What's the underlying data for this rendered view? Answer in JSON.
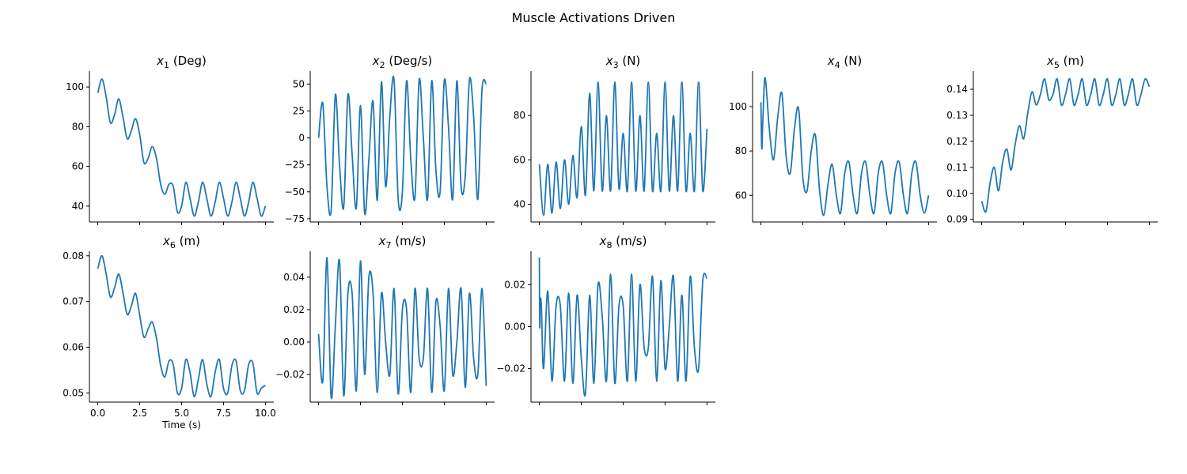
{
  "figure": {
    "title": "Muscle Activations Driven",
    "line_color": "#1f77b4",
    "background": "#ffffff"
  },
  "chart_data": [
    {
      "type": "line",
      "title_var": "x",
      "title_sub": "1",
      "title_unit": " (Deg)",
      "xlim": [
        -0.5,
        10.5
      ],
      "ylim": [
        32,
        108
      ],
      "xticks": [
        0,
        2.5,
        5,
        7.5,
        10
      ],
      "xtick_labels": [],
      "yticks": [
        40,
        60,
        80,
        100
      ],
      "ytick_labels": [
        "40",
        "60",
        "80",
        "100"
      ],
      "xlabel": "",
      "x": [
        0,
        0.25,
        0.5,
        0.75,
        1,
        1.25,
        1.5,
        1.75,
        2,
        2.25,
        2.5,
        2.75,
        3,
        3.25,
        3.5,
        3.75,
        4,
        4.25,
        4.5,
        4.75,
        5,
        5.25,
        5.5,
        5.75,
        6,
        6.25,
        6.5,
        6.75,
        7,
        7.25,
        7.5,
        7.75,
        8,
        8.25,
        8.5,
        8.75,
        9,
        9.25,
        9.5,
        9.75,
        10
      ],
      "y": [
        97,
        104,
        95,
        82,
        86,
        94,
        85,
        74,
        78,
        84,
        76,
        62,
        64,
        70,
        64,
        51,
        46,
        51,
        50,
        37,
        40,
        52,
        44,
        35,
        42,
        52,
        44,
        35,
        42,
        52,
        44,
        35,
        42,
        52,
        44,
        35,
        42,
        52,
        44,
        35,
        40
      ]
    },
    {
      "type": "line",
      "title_var": "x",
      "title_sub": "2",
      "title_unit": " (Deg/s)",
      "xlim": [
        -0.5,
        10.5
      ],
      "ylim": [
        -78,
        62
      ],
      "xticks": [
        0,
        2.5,
        5,
        7.5,
        10
      ],
      "xtick_labels": [],
      "yticks": [
        -75,
        -50,
        -25,
        0,
        25,
        50
      ],
      "ytick_labels": [
        "−75",
        "−50",
        "−25",
        "0",
        "25",
        "50"
      ],
      "xlabel": "",
      "x": [
        0,
        0.25,
        0.5,
        0.75,
        1,
        1.25,
        1.5,
        1.75,
        2,
        2.25,
        2.5,
        2.75,
        3,
        3.25,
        3.5,
        3.75,
        4,
        4.25,
        4.5,
        4.75,
        5,
        5.25,
        5.5,
        5.75,
        6,
        6.25,
        6.5,
        6.75,
        7,
        7.25,
        7.5,
        7.75,
        8,
        8.25,
        8.5,
        8.75,
        9,
        9.25,
        9.5,
        9.75,
        10
      ],
      "y": [
        0,
        32,
        -45,
        -67,
        40,
        -25,
        -64,
        40,
        -15,
        -65,
        30,
        -70,
        -20,
        34,
        -58,
        52,
        -45,
        20,
        54,
        -57,
        -50,
        53,
        -20,
        -55,
        54,
        0,
        -57,
        53,
        -30,
        -50,
        53,
        10,
        -57,
        53,
        -45,
        -35,
        54,
        20,
        -57,
        45,
        50
      ]
    },
    {
      "type": "line",
      "title_var": "x",
      "title_sub": "3",
      "title_unit": " (N)",
      "xlim": [
        -0.5,
        10.5
      ],
      "ylim": [
        32,
        100
      ],
      "xticks": [
        0,
        2.5,
        5,
        7.5,
        10
      ],
      "xtick_labels": [],
      "yticks": [
        40,
        60,
        80
      ],
      "ytick_labels": [
        "40",
        "60",
        "80"
      ],
      "xlabel": "",
      "x": [
        0,
        0.25,
        0.5,
        0.75,
        1,
        1.25,
        1.5,
        1.75,
        2,
        2.25,
        2.5,
        2.75,
        3,
        3.25,
        3.5,
        3.75,
        4,
        4.25,
        4.5,
        4.75,
        5,
        5.25,
        5.5,
        5.75,
        6,
        6.25,
        6.5,
        6.75,
        7,
        7.25,
        7.5,
        7.75,
        8,
        8.25,
        8.5,
        8.75,
        9,
        9.25,
        9.5,
        9.75,
        10
      ],
      "y": [
        58,
        35,
        58,
        36,
        59,
        38,
        60,
        40,
        62,
        43,
        75,
        44,
        90,
        46,
        95,
        46,
        80,
        46,
        95,
        47,
        72,
        46,
        95,
        46,
        80,
        46,
        95,
        46,
        72,
        46,
        95,
        46,
        80,
        46,
        95,
        46,
        72,
        46,
        95,
        46,
        74
      ]
    },
    {
      "type": "line",
      "title_var": "x",
      "title_sub": "4",
      "title_unit": " (N)",
      "xlim": [
        -0.5,
        10.5
      ],
      "ylim": [
        48,
        116
      ],
      "xticks": [
        0,
        2.5,
        5,
        7.5,
        10
      ],
      "xtick_labels": [],
      "yticks": [
        60,
        80,
        100
      ],
      "ytick_labels": [
        "60",
        "80",
        "100"
      ],
      "xlabel": "",
      "x": [
        0,
        0.05,
        0.12,
        0.25,
        0.5,
        0.75,
        1,
        1.25,
        1.5,
        1.75,
        2,
        2.25,
        2.5,
        2.75,
        3,
        3.25,
        3.5,
        3.75,
        4,
        4.25,
        4.5,
        4.75,
        5,
        5.25,
        5.5,
        5.75,
        6,
        6.25,
        6.5,
        6.75,
        7,
        7.25,
        7.5,
        7.75,
        8,
        8.25,
        8.5,
        8.75,
        9,
        9.25,
        9.5,
        9.75,
        10
      ],
      "y": [
        102,
        81,
        95,
        113,
        90,
        76,
        95,
        106,
        78,
        70,
        90,
        99,
        68,
        62,
        80,
        87,
        62,
        51,
        65,
        74,
        60,
        52,
        70,
        75,
        60,
        52,
        70,
        75,
        60,
        52,
        70,
        75,
        60,
        52,
        70,
        75,
        60,
        52,
        70,
        75,
        60,
        52,
        60
      ]
    },
    {
      "type": "line",
      "title_var": "x",
      "title_sub": "5",
      "title_unit": " (m)",
      "xlim": [
        -0.5,
        10.5
      ],
      "ylim": [
        0.089,
        0.147
      ],
      "xticks": [
        0,
        2.5,
        5,
        7.5,
        10
      ],
      "xtick_labels": [],
      "yticks": [
        0.09,
        0.1,
        0.11,
        0.12,
        0.13,
        0.14
      ],
      "ytick_labels": [
        "0.09",
        "0.10",
        "0.11",
        "0.12",
        "0.13",
        "0.14"
      ],
      "xlabel": "",
      "x": [
        0,
        0.25,
        0.5,
        0.75,
        1,
        1.25,
        1.5,
        1.75,
        2,
        2.25,
        2.5,
        2.75,
        3,
        3.25,
        3.5,
        3.75,
        4,
        4.25,
        4.5,
        4.75,
        5,
        5.25,
        5.5,
        5.75,
        6,
        6.25,
        6.5,
        6.75,
        7,
        7.25,
        7.5,
        7.75,
        8,
        8.25,
        8.5,
        8.75,
        9,
        9.25,
        9.5,
        9.75,
        10
      ],
      "y": [
        0.097,
        0.093,
        0.104,
        0.11,
        0.101,
        0.112,
        0.117,
        0.109,
        0.119,
        0.126,
        0.121,
        0.131,
        0.139,
        0.134,
        0.138,
        0.144,
        0.136,
        0.138,
        0.144,
        0.134,
        0.138,
        0.144,
        0.134,
        0.138,
        0.144,
        0.134,
        0.138,
        0.144,
        0.134,
        0.138,
        0.144,
        0.134,
        0.138,
        0.144,
        0.134,
        0.138,
        0.144,
        0.134,
        0.138,
        0.144,
        0.141
      ]
    },
    {
      "type": "line",
      "title_var": "x",
      "title_sub": "6",
      "title_unit": " (m)",
      "xlim": [
        -0.5,
        10.5
      ],
      "ylim": [
        0.048,
        0.081
      ],
      "xticks": [
        0,
        2.5,
        5,
        7.5,
        10
      ],
      "xtick_labels": [
        "0.0",
        "2.5",
        "5.0",
        "7.5",
        "10.0"
      ],
      "yticks": [
        0.05,
        0.06,
        0.07,
        0.08
      ],
      "ytick_labels": [
        "0.05",
        "0.06",
        "0.07",
        "0.08"
      ],
      "xlabel": "Time (s)",
      "x": [
        0,
        0.25,
        0.5,
        0.75,
        1,
        1.25,
        1.5,
        1.75,
        2,
        2.25,
        2.5,
        2.75,
        3,
        3.25,
        3.5,
        3.75,
        4,
        4.25,
        4.5,
        4.75,
        5,
        5.25,
        5.5,
        5.75,
        6,
        6.25,
        6.5,
        6.75,
        7,
        7.25,
        7.5,
        7.75,
        8,
        8.25,
        8.5,
        8.75,
        9,
        9.25,
        9.5,
        9.75,
        10
      ],
      "y": [
        0.0772,
        0.08,
        0.076,
        0.071,
        0.073,
        0.076,
        0.072,
        0.0672,
        0.069,
        0.0718,
        0.067,
        0.0622,
        0.064,
        0.0655,
        0.062,
        0.056,
        0.0535,
        0.057,
        0.0562,
        0.05,
        0.051,
        0.0573,
        0.0545,
        0.0492,
        0.053,
        0.0573,
        0.052,
        0.0492,
        0.0545,
        0.0573,
        0.051,
        0.05,
        0.056,
        0.057,
        0.0505,
        0.0505,
        0.0562,
        0.0565,
        0.05,
        0.051,
        0.0517
      ]
    },
    {
      "type": "line",
      "title_var": "x",
      "title_sub": "7",
      "title_unit": " (m/s)",
      "xlim": [
        -0.5,
        10.5
      ],
      "ylim": [
        -0.037,
        0.056
      ],
      "xticks": [
        0,
        2.5,
        5,
        7.5,
        10
      ],
      "xtick_labels": [],
      "yticks": [
        -0.02,
        0.0,
        0.02,
        0.04
      ],
      "ytick_labels": [
        "−0.02",
        "0.00",
        "0.02",
        "0.04"
      ],
      "xlabel": "",
      "x": [
        0,
        0.25,
        0.5,
        0.75,
        1,
        1.25,
        1.5,
        1.75,
        2,
        2.25,
        2.5,
        2.75,
        3,
        3.25,
        3.5,
        3.75,
        4,
        4.25,
        4.5,
        4.75,
        5,
        5.25,
        5.5,
        5.75,
        6,
        6.25,
        6.5,
        6.75,
        7,
        7.25,
        7.5,
        7.75,
        8,
        8.25,
        8.5,
        8.75,
        9,
        9.25,
        9.5,
        9.75,
        10
      ],
      "y": [
        0.005,
        -0.024,
        0.052,
        -0.034,
        0.01,
        0.05,
        -0.033,
        0.03,
        0.03,
        -0.03,
        0.05,
        -0.02,
        0.04,
        0.03,
        -0.031,
        0.03,
        0.0,
        -0.02,
        0.033,
        -0.032,
        0.02,
        0.02,
        -0.031,
        0.033,
        -0.01,
        -0.01,
        0.033,
        -0.031,
        0.025,
        0.01,
        -0.03,
        0.033,
        -0.02,
        0.0,
        0.033,
        -0.028,
        0.03,
        -0.01,
        -0.02,
        0.033,
        -0.027
      ]
    },
    {
      "type": "line",
      "title_var": "x",
      "title_sub": "8",
      "title_unit": " (m/s)",
      "xlim": [
        -0.5,
        10.5
      ],
      "ylim": [
        -0.036,
        0.036
      ],
      "xticks": [
        0,
        2.5,
        5,
        7.5,
        10
      ],
      "xtick_labels": [],
      "yticks": [
        -0.02,
        0.0,
        0.02
      ],
      "ytick_labels": [
        "−0.02",
        "0.00",
        "0.02"
      ],
      "xlabel": "",
      "x": [
        0,
        0.02,
        0.05,
        0.12,
        0.25,
        0.5,
        0.75,
        1,
        1.25,
        1.5,
        1.75,
        2,
        2.25,
        2.5,
        2.75,
        3,
        3.25,
        3.5,
        3.75,
        4,
        4.25,
        4.5,
        4.75,
        5,
        5.25,
        5.5,
        5.75,
        6,
        6.25,
        6.5,
        6.75,
        7,
        7.25,
        7.5,
        7.75,
        8,
        8.25,
        8.5,
        8.75,
        9,
        9.25,
        9.5,
        9.75,
        10
      ],
      "y": [
        0.033,
        0.0,
        0.012,
        0.01,
        -0.02,
        0.017,
        -0.026,
        0.01,
        0.01,
        -0.026,
        0.016,
        -0.027,
        0.015,
        -0.015,
        -0.032,
        0.015,
        -0.027,
        0.02,
        0.005,
        -0.026,
        0.025,
        -0.027,
        0.01,
        0.01,
        -0.026,
        0.025,
        -0.026,
        0.02,
        -0.01,
        -0.01,
        0.024,
        -0.026,
        0.022,
        -0.02,
        0.0,
        0.024,
        -0.026,
        0.015,
        -0.026,
        0.024,
        -0.01,
        -0.02,
        0.022,
        0.023
      ]
    }
  ]
}
